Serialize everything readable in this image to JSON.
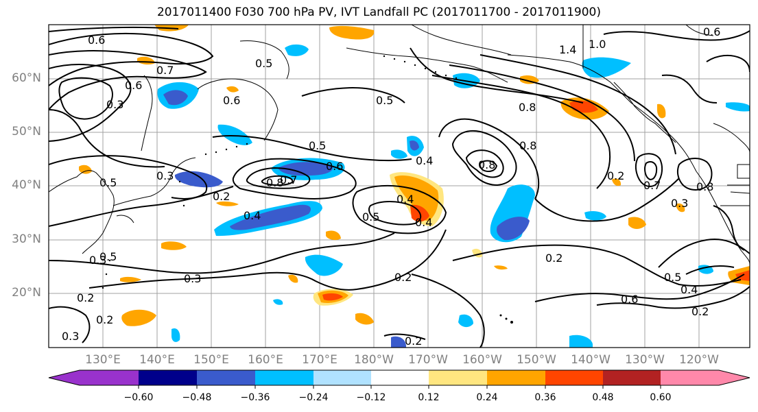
{
  "title": "2017011400 F030 700 hPa PV, IVT Landfall PC (2017011700 - 2017011900)",
  "lat_labels": [
    "60°N",
    "50°N",
    "40°N",
    "30°N",
    "20°N"
  ],
  "lon_labels": [
    "130°E",
    "140°E",
    "150°E",
    "160°E",
    "170°E",
    "180°W",
    "170°W",
    "160°W",
    "150°W",
    "140°W",
    "130°W",
    "120°W"
  ],
  "contour_labels": [
    "0.6",
    "0.7",
    "0.5",
    "0.6",
    "0.5",
    "0.4",
    "0.3",
    "0.2",
    "0.4",
    "0.5",
    "0.6",
    "0.4",
    "0.8",
    "0.7",
    "0.3",
    "0.2",
    "0.2",
    "0.5",
    "0.5",
    "0.4",
    "0.2",
    "0.3",
    "0.2",
    "0.8",
    "1.4",
    "1.0",
    "0.8",
    "0.8",
    "0.3",
    "0.7",
    "0.6",
    "0.5",
    "0.6",
    "0.2",
    "0.8",
    "0.4",
    "0.6",
    "0.3",
    "0.2",
    "0.3",
    "0.5",
    "0.2"
  ],
  "colorbar": {
    "ticks": [
      "−0.60",
      "−0.48",
      "−0.36",
      "−0.24",
      "−0.12",
      "0.12",
      "0.24",
      "0.36",
      "0.48",
      "0.60"
    ],
    "colors": [
      "#9932CC",
      "#00008B",
      "#3A5BCC",
      "#00BFFF",
      "#B0E2FF",
      "#FFFFFF",
      "#FFE680",
      "#FFA500",
      "#FF4500",
      "#B22222",
      "#FF88AA"
    ]
  },
  "style": {
    "grid_color": "#A0A0A0",
    "axis_label_color": "#808080"
  }
}
